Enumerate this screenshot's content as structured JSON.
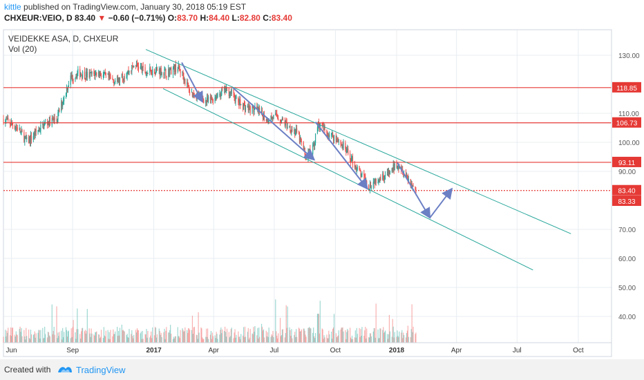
{
  "header": {
    "author": "kittle",
    "published_text": "published on TradingView.com, January 30, 2018 05:19 EST",
    "symbol": "CHXEUR:VEIO, D",
    "last": "83.40",
    "change": "−0.60 (−0.71%)",
    "o_label": "O:",
    "o_value": "83.70",
    "h_label": "H:",
    "h_value": "84.40",
    "l_label": "L:",
    "l_value": "82.80",
    "c_label": "C:",
    "c_value": "83.40"
  },
  "chart_title": "VEIDEKKE ASA, D, CHXEUR",
  "volume_label": "Vol (20)",
  "footer": {
    "created_with": "Created with",
    "brand": "TradingView"
  },
  "colors": {
    "up": "#26a69a",
    "down": "#ef5350",
    "hline": "#e53935",
    "channel": "#26a69a",
    "arrow": "#6b7fc4",
    "grid": "#e8edf2"
  },
  "icons": [
    "tradingview-logo-icon",
    "down-triangle-icon"
  ],
  "chart_data": {
    "type": "candlestick",
    "title": "VEIDEKKE ASA, D, CHXEUR",
    "y_ticks": [
      "130.00",
      "110.00",
      "100.00",
      "90.00",
      "70.00",
      "60.00",
      "50.00",
      "40.00"
    ],
    "y_tick_values": [
      130,
      110,
      100,
      90,
      70,
      60,
      50,
      40
    ],
    "x_ticks": [
      "Jun",
      "Sep",
      "2017",
      "Apr",
      "Jul",
      "Oct",
      "2018",
      "Apr",
      "Jul",
      "Oct"
    ],
    "x_tick_dates": [
      "2016-06-01",
      "2016-09-01",
      "2017-01-01",
      "2017-04-01",
      "2017-07-01",
      "2017-10-01",
      "2018-01-01",
      "2018-04-01",
      "2018-07-01",
      "2018-10-01"
    ],
    "x_range": [
      "2016-05-20",
      "2018-11-20"
    ],
    "y_range": [
      30,
      138
    ],
    "grid": true,
    "series_close": [
      [
        "2016-05-20",
        108
      ],
      [
        "2016-06-10",
        105
      ],
      [
        "2016-06-25",
        100
      ],
      [
        "2016-07-10",
        104
      ],
      [
        "2016-07-25",
        107
      ],
      [
        "2016-08-08",
        108
      ],
      [
        "2016-08-18",
        115
      ],
      [
        "2016-08-28",
        122
      ],
      [
        "2016-09-10",
        124
      ],
      [
        "2016-09-25",
        123
      ],
      [
        "2016-10-10",
        124
      ],
      [
        "2016-10-25",
        122
      ],
      [
        "2016-11-08",
        121
      ],
      [
        "2016-11-22",
        124
      ],
      [
        "2016-12-05",
        127
      ],
      [
        "2016-12-20",
        124
      ],
      [
        "2017-01-05",
        125
      ],
      [
        "2017-01-20",
        124
      ],
      [
        "2017-02-05",
        126
      ],
      [
        "2017-02-12",
        124
      ],
      [
        "2017-02-25",
        117
      ],
      [
        "2017-03-10",
        116
      ],
      [
        "2017-03-22",
        114
      ],
      [
        "2017-04-05",
        116
      ],
      [
        "2017-04-18",
        118
      ],
      [
        "2017-04-28",
        117
      ],
      [
        "2017-05-06",
        114
      ],
      [
        "2017-05-20",
        112
      ],
      [
        "2017-06-05",
        111
      ],
      [
        "2017-06-20",
        108
      ],
      [
        "2017-07-05",
        109
      ],
      [
        "2017-07-20",
        106
      ],
      [
        "2017-08-05",
        103
      ],
      [
        "2017-08-18",
        95
      ],
      [
        "2017-08-28",
        98
      ],
      [
        "2017-09-05",
        106
      ],
      [
        "2017-09-20",
        103
      ],
      [
        "2017-10-05",
        101
      ],
      [
        "2017-10-20",
        96
      ],
      [
        "2017-11-05",
        90
      ],
      [
        "2017-11-20",
        85
      ],
      [
        "2017-12-05",
        88
      ],
      [
        "2017-12-20",
        89
      ],
      [
        "2018-01-02",
        93
      ],
      [
        "2018-01-12",
        90
      ],
      [
        "2018-01-22",
        86
      ],
      [
        "2018-01-30",
        83.4
      ]
    ],
    "horizontal_levels": [
      {
        "value": 118.85,
        "label": "118.85",
        "style": "solid"
      },
      {
        "value": 106.73,
        "label": "106.73",
        "style": "solid"
      },
      {
        "value": 93.11,
        "label": "93.11",
        "style": "solid"
      },
      {
        "value": 83.4,
        "label": "83.40",
        "style": "dotted"
      }
    ],
    "price_labels": [
      {
        "value": 83.4,
        "label": "83.40"
      },
      {
        "value": 83.33,
        "label": "83.33"
      }
    ],
    "channel_lines": [
      {
        "from": [
          "2016-12-20",
          132
        ],
        "to": [
          "2018-09-20",
          68.5
        ]
      },
      {
        "from": [
          "2017-01-15",
          118.5
        ],
        "to": [
          "2018-07-25",
          56
        ]
      }
    ],
    "arrows": [
      {
        "from": [
          "2017-02-12",
          127.5
        ],
        "to": [
          "2017-03-15",
          114
        ]
      },
      {
        "from": [
          "2017-04-30",
          118.8
        ],
        "to": [
          "2017-08-30",
          94
        ]
      },
      {
        "from": [
          "2017-09-01",
          107
        ],
        "to": [
          "2017-11-18",
          84
        ]
      },
      {
        "from": [
          "2018-01-02",
          93
        ],
        "to": [
          "2018-02-20",
          74
        ]
      },
      {
        "from": [
          "2018-02-20",
          74
        ],
        "to": [
          "2018-03-25",
          84
        ]
      }
    ],
    "volume": {
      "max_visible": 57,
      "base": 30
    }
  }
}
